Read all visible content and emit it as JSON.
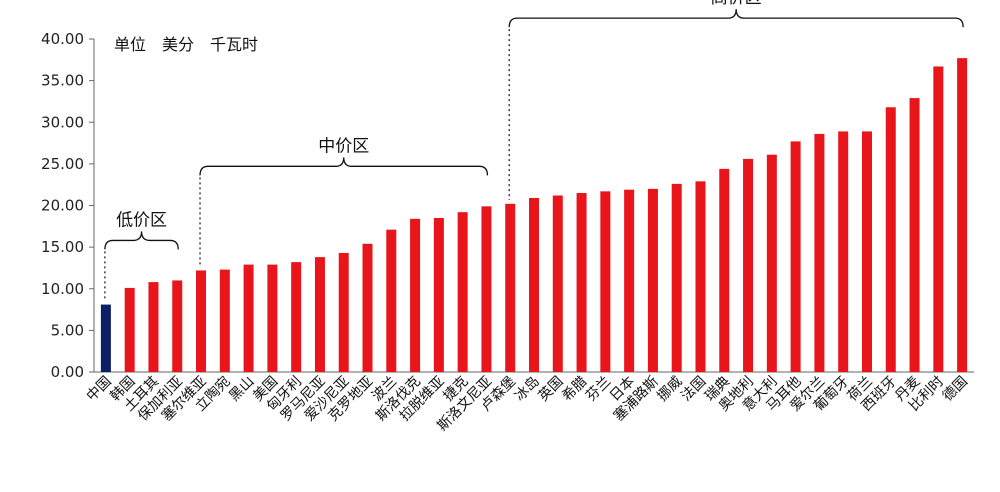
{
  "chart_data": {
    "type": "bar",
    "unit_label": "单位　美分　千瓦时",
    "categories": [
      "中国",
      "韩国",
      "土耳其",
      "保加利亚",
      "塞尔维亚",
      "立陶宛",
      "黑山",
      "美国",
      "匈牙利",
      "罗马尼亚",
      "爱沙尼亚",
      "克罗地亚",
      "波兰",
      "斯洛伐克",
      "拉脱维亚",
      "捷克",
      "斯洛文尼亚",
      "卢森堡",
      "冰岛",
      "英国",
      "希腊",
      "芬兰",
      "日本",
      "塞浦路斯",
      "挪威",
      "法国",
      "瑞典",
      "奥地利",
      "意大利",
      "马耳他",
      "爱尔兰",
      "葡萄牙",
      "荷兰",
      "西班牙",
      "丹麦",
      "比利时",
      "德国"
    ],
    "values": [
      8.1,
      10.1,
      10.8,
      11.0,
      12.2,
      12.3,
      12.9,
      12.9,
      13.2,
      13.8,
      14.3,
      15.4,
      17.1,
      18.4,
      18.5,
      19.2,
      19.9,
      20.2,
      20.9,
      21.2,
      21.5,
      21.7,
      21.9,
      22.0,
      22.6,
      22.9,
      24.4,
      25.6,
      26.1,
      27.7,
      28.6,
      28.9,
      28.9,
      31.8,
      32.9,
      36.7,
      37.7
    ],
    "colors": {
      "highlight": "#0b1f66",
      "default": "#e8151b"
    },
    "highlight_index": 0,
    "ylim": [
      0,
      40
    ],
    "yticks": [
      "0.00",
      "5.00",
      "10.00",
      "15.00",
      "20.00",
      "25.00",
      "30.00",
      "35.00",
      "40.00"
    ],
    "grid": false,
    "groups": [
      {
        "label": "低价区",
        "start": 0,
        "end": 3
      },
      {
        "label": "中价区",
        "start": 4,
        "end": 16
      },
      {
        "label": "高价区",
        "start": 17,
        "end": 36
      }
    ]
  }
}
